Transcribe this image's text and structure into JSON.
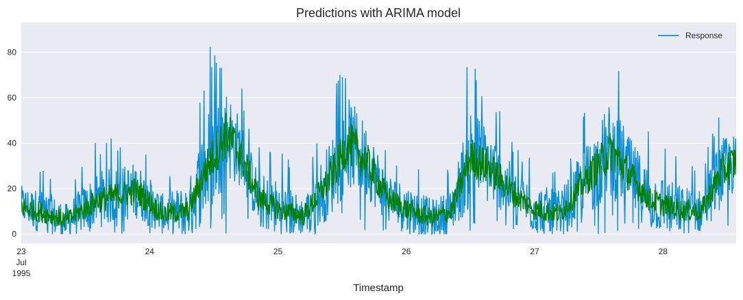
{
  "chart_data": {
    "type": "line",
    "title": "Predictions with ARIMA model",
    "xlabel": "Timestamp",
    "ylabel": "",
    "xlim_days": [
      23,
      28.57
    ],
    "ylim": [
      -4,
      93
    ],
    "x_ticks": [
      {
        "day": 23,
        "lines": [
          "23",
          "Jul",
          "1995"
        ]
      },
      {
        "day": 24,
        "lines": [
          "24"
        ]
      },
      {
        "day": 25,
        "lines": [
          "25"
        ]
      },
      {
        "day": 26,
        "lines": [
          "26"
        ]
      },
      {
        "day": 27,
        "lines": [
          "27"
        ]
      },
      {
        "day": 28,
        "lines": [
          "28"
        ]
      }
    ],
    "y_ticks": [
      0,
      20,
      40,
      60,
      80
    ],
    "grid": true,
    "legend": {
      "position": "top-right",
      "entries": [
        "Response"
      ]
    },
    "series": [
      {
        "name": "Response",
        "color": "#0a8fd6",
        "approx_profile": {
          "x_day": [
            23.0,
            23.2,
            23.35,
            23.6,
            23.9,
            24.1,
            24.3,
            24.45,
            24.6,
            24.7,
            24.85,
            25.0,
            25.2,
            25.4,
            25.55,
            25.7,
            25.85,
            26.0,
            26.2,
            26.35,
            26.5,
            26.65,
            26.85,
            27.0,
            27.2,
            27.4,
            27.6,
            27.75,
            27.9,
            28.1,
            28.3,
            28.45,
            28.57
          ],
          "center": [
            12,
            8,
            5,
            14,
            18,
            8,
            9,
            28,
            42,
            35,
            14,
            10,
            7,
            22,
            38,
            30,
            15,
            10,
            6,
            9,
            32,
            28,
            16,
            10,
            8,
            22,
            35,
            24,
            14,
            10,
            9,
            25,
            30
          ],
          "upper_peak": [
            31,
            30,
            22,
            42,
            46,
            28,
            35,
            83,
            88,
            70,
            40,
            39,
            25,
            60,
            83,
            66,
            40,
            35,
            25,
            30,
            83,
            65,
            40,
            35,
            30,
            57,
            84,
            60,
            45,
            35,
            30,
            60,
            58
          ]
        }
      },
      {
        "name": "",
        "color": "#008000",
        "approx_profile": {
          "x_day": [
            23.0,
            23.2,
            23.35,
            23.6,
            23.9,
            24.1,
            24.3,
            24.45,
            24.6,
            24.7,
            24.85,
            25.0,
            25.2,
            25.4,
            25.55,
            25.7,
            25.85,
            26.0,
            26.2,
            26.35,
            26.5,
            26.65,
            26.85,
            27.0,
            27.2,
            27.4,
            27.6,
            27.75,
            27.9,
            28.1,
            28.3,
            28.45,
            28.57
          ],
          "center": [
            12,
            9,
            6,
            15,
            19,
            9,
            10,
            30,
            44,
            36,
            16,
            11,
            8,
            24,
            40,
            31,
            16,
            11,
            7,
            10,
            34,
            29,
            17,
            11,
            9,
            24,
            37,
            25,
            15,
            11,
            10,
            27,
            32
          ]
        }
      }
    ]
  }
}
